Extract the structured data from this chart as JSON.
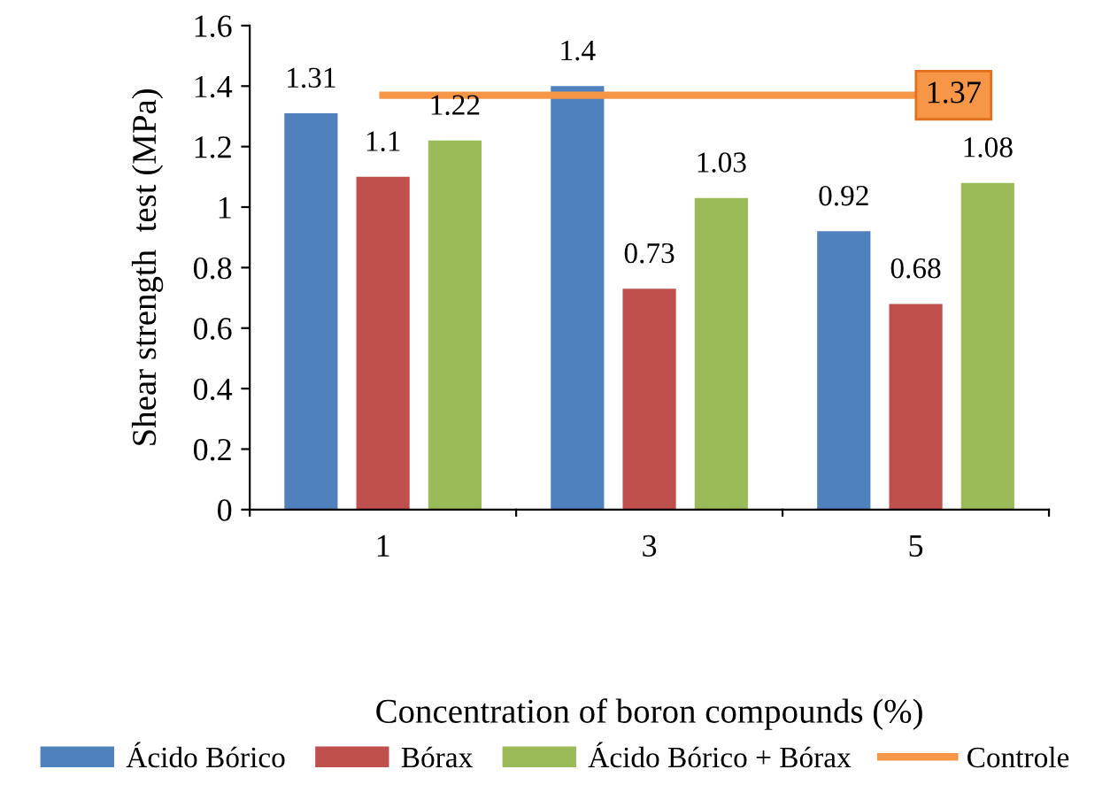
{
  "chart_data": {
    "type": "bar",
    "xlabel": "Concentration of boron compounds (%)",
    "ylabel": "Shear strength  test (MPa)",
    "categories": [
      "1",
      "3",
      "5"
    ],
    "series": [
      {
        "name": "Ácido Bórico",
        "color": "#4f81bd",
        "values": [
          1.31,
          1.4,
          0.92
        ]
      },
      {
        "name": "Bórax",
        "color": "#c0504d",
        "values": [
          1.1,
          0.73,
          0.68
        ]
      },
      {
        "name": "Ácido Bórico + Bórax",
        "color": "#9bbb59",
        "values": [
          1.22,
          1.03,
          1.08
        ]
      },
      {
        "name": "Controle",
        "type": "line",
        "color": "#f79646",
        "values": [
          1.37,
          1.37,
          1.37
        ],
        "value_labels": [
          null,
          null,
          "1.37"
        ]
      }
    ],
    "ylim": [
      0,
      1.6
    ],
    "yticks": [
      0,
      0.2,
      0.4,
      0.6,
      0.8,
      1,
      1.2,
      1.4,
      1.6
    ],
    "data_labels": true,
    "grid": false,
    "legend": "bottom"
  }
}
